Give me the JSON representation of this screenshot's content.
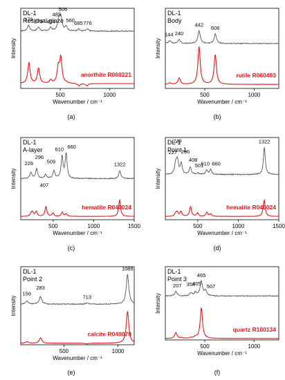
{
  "figure": {
    "panels": [
      {
        "letter": "(a)",
        "sample": "DL-1",
        "region": "Residual glaze",
        "reference": "anorthite R060221",
        "xlabel": "Wavenumber / cm⁻¹",
        "ylabel": "Intensity",
        "xticks": [
          "500",
          "1000"
        ]
      },
      {
        "letter": "(b)",
        "sample": "DL-1",
        "region": "Body",
        "reference": "rutile R060493",
        "xlabel": "Wavenumber / cm⁻¹",
        "ylabel": "Intensity",
        "xticks": [
          "500",
          "1000"
        ]
      },
      {
        "letter": "(c)",
        "sample": "DL-1",
        "region": "A-layer",
        "reference": "hematite R040024",
        "xlabel": "Wavenumber / cm⁻¹",
        "ylabel": "Intensity",
        "xticks": [
          "500",
          "1000",
          "1500"
        ]
      },
      {
        "letter": "(d)",
        "sample": "DL-1",
        "region": "Point 1",
        "reference": "hematite R040024",
        "xlabel": "Wavenumber / cm⁻¹",
        "ylabel": "Intensity",
        "xticks": [
          "500",
          "1000",
          "1500"
        ]
      },
      {
        "letter": "(e)",
        "sample": "DL-1",
        "region": "Point 2",
        "reference": "calcite R040070",
        "xlabel": "Wavenumber / cm⁻¹",
        "ylabel": "Intensity",
        "xticks": [
          "500",
          "1000"
        ]
      },
      {
        "letter": "(f)",
        "sample": "DL-1",
        "region": "Point 3",
        "reference": "quartz R100134",
        "xlabel": "Wavenumber / cm⁻¹",
        "ylabel": "Intensity",
        "xticks": [
          "500",
          "1000"
        ]
      }
    ]
  },
  "colors": {
    "sample": "#555555",
    "reference": "#e8141c",
    "axis": "#000000",
    "peak_label": "#000000"
  },
  "chart_data": [
    {
      "type": "line",
      "panel": "a",
      "xlim": [
        100,
        1250
      ],
      "ylim": [
        0,
        1
      ],
      "series": [
        {
          "name": "DL-1 Residual glaze",
          "peaks": [
            [
              179,
              0.79
            ],
            [
              279,
              0.765
            ],
            [
              404,
              0.76
            ],
            [
              485,
              0.85
            ],
            [
              506,
              0.88
            ],
            [
              560,
              0.775
            ],
            [
              685,
              0.74
            ],
            [
              776,
              0.74
            ]
          ],
          "baseline": 0.715
        },
        {
          "name": "anorthite R060221",
          "peaks": [
            [
              183,
              0.32
            ],
            [
              280,
              0.25
            ],
            [
              403,
              0.1
            ],
            [
              480,
              0.25
            ],
            [
              506,
              0.37
            ],
            [
              560,
              0.07
            ],
            [
              690,
              0.03
            ],
            [
              770,
              0.03
            ]
          ],
          "baseline": 0.06
        }
      ],
      "peak_labels": [
        "179",
        "279",
        "404",
        "485",
        "506",
        "560",
        "685",
        "776"
      ],
      "peak_label_x": [
        179,
        279,
        404,
        485,
        506,
        560,
        685,
        776
      ]
    },
    {
      "type": "line",
      "panel": "b",
      "xlim": [
        100,
        1250
      ],
      "ylim": [
        0,
        1
      ],
      "series": [
        {
          "name": "DL-1 Body",
          "peaks": [
            [
              144,
              0.6
            ],
            [
              240,
              0.61
            ],
            [
              442,
              0.72
            ],
            [
              606,
              0.68
            ]
          ],
          "baseline": 0.56
        },
        {
          "name": "rutile R060493",
          "peaks": [
            [
              144,
              0.07
            ],
            [
              240,
              0.13
            ],
            [
              442,
              0.52
            ],
            [
              606,
              0.42
            ]
          ],
          "baseline": 0.05
        }
      ],
      "peak_labels": [
        "144",
        "240",
        "442",
        "606"
      ],
      "peak_label_x": [
        144,
        240,
        442,
        606
      ]
    },
    {
      "type": "line",
      "panel": "c",
      "xlim": [
        100,
        1500
      ],
      "ylim": [
        0,
        1
      ],
      "series": [
        {
          "name": "DL-1 A-layer",
          "peaks": [
            [
              226,
              0.58
            ],
            [
              296,
              0.62
            ],
            [
              407,
              0.55
            ],
            [
              509,
              0.6
            ],
            [
              610,
              0.77
            ],
            [
              660,
              0.8
            ],
            [
              1322,
              0.6
            ]
          ],
          "baseline": 0.5
        },
        {
          "name": "hematite R040024",
          "peaks": [
            [
              226,
              0.07
            ],
            [
              245,
              0.09
            ],
            [
              292,
              0.1
            ],
            [
              411,
              0.16
            ],
            [
              497,
              0.08
            ],
            [
              612,
              0.09
            ],
            [
              660,
              0.07
            ],
            [
              1320,
              0.24
            ]
          ],
          "baseline": 0.04
        }
      ],
      "peak_labels": [
        "226",
        "296",
        "407",
        "509",
        "610",
        "660",
        "1322"
      ],
      "peak_label_x": [
        226,
        296,
        407,
        509,
        610,
        660,
        1322
      ]
    },
    {
      "type": "line",
      "panel": "d",
      "xlim": [
        100,
        1500
      ],
      "ylim": [
        0,
        1
      ],
      "series": [
        {
          "name": "DL-1 Point 1",
          "peaks": [
            [
              227,
              0.68
            ],
            [
              249,
              0.72
            ],
            [
              296,
              0.69
            ],
            [
              408,
              0.64
            ],
            [
              501,
              0.57
            ],
            [
              610,
              0.61
            ],
            [
              660,
              0.61
            ],
            [
              1322,
              0.88
            ]
          ],
          "baseline": 0.55
        },
        {
          "name": "hematite R040024",
          "peaks": [
            [
              226,
              0.07
            ],
            [
              245,
              0.09
            ],
            [
              292,
              0.1
            ],
            [
              411,
              0.16
            ],
            [
              497,
              0.08
            ],
            [
              612,
              0.09
            ],
            [
              660,
              0.07
            ],
            [
              1320,
              0.24
            ]
          ],
          "baseline": 0.04
        }
      ],
      "peak_labels": [
        "227",
        "249",
        "296",
        "408",
        "501",
        "610",
        "660",
        "1322"
      ],
      "peak_label_x": [
        227,
        249,
        296,
        408,
        501,
        610,
        660,
        1322
      ]
    },
    {
      "type": "line",
      "panel": "e",
      "xlim": [
        100,
        1150
      ],
      "ylim": [
        0,
        1
      ],
      "series": [
        {
          "name": "DL-1 Point 2",
          "peaks": [
            [
              156,
              0.56
            ],
            [
              283,
              0.62
            ],
            [
              713,
              0.535
            ],
            [
              1088,
              0.9
            ]
          ],
          "baseline": 0.52
        },
        {
          "name": "calcite R040070",
          "peaks": [
            [
              156,
              0.04
            ],
            [
              283,
              0.09
            ],
            [
              713,
              0.01
            ],
            [
              1088,
              0.43
            ]
          ],
          "baseline": 0.02
        }
      ],
      "peak_labels": [
        "156",
        "283",
        "713",
        "1088"
      ],
      "peak_label_x": [
        156,
        283,
        713,
        1088
      ]
    },
    {
      "type": "line",
      "panel": "f",
      "xlim": [
        100,
        1250
      ],
      "ylim": [
        0,
        1
      ],
      "series": [
        {
          "name": "DL-1 Point 3",
          "peaks": [
            [
              207,
              0.66
            ],
            [
              358,
              0.64
            ],
            [
              405,
              0.65
            ],
            [
              465,
              0.8
            ],
            [
              507,
              0.67
            ]
          ],
          "baseline": 0.6
        },
        {
          "name": "quartz R100134",
          "peaks": [
            [
              207,
              0.1
            ],
            [
              265,
              0.03
            ],
            [
              358,
              0.03
            ],
            [
              405,
              0.04
            ],
            [
              465,
              0.44
            ]
          ],
          "baseline": 0.02
        }
      ],
      "peak_labels": [
        "207",
        "358",
        "405",
        "465",
        "507"
      ],
      "peak_label_x": [
        207,
        358,
        405,
        465,
        507
      ]
    }
  ]
}
